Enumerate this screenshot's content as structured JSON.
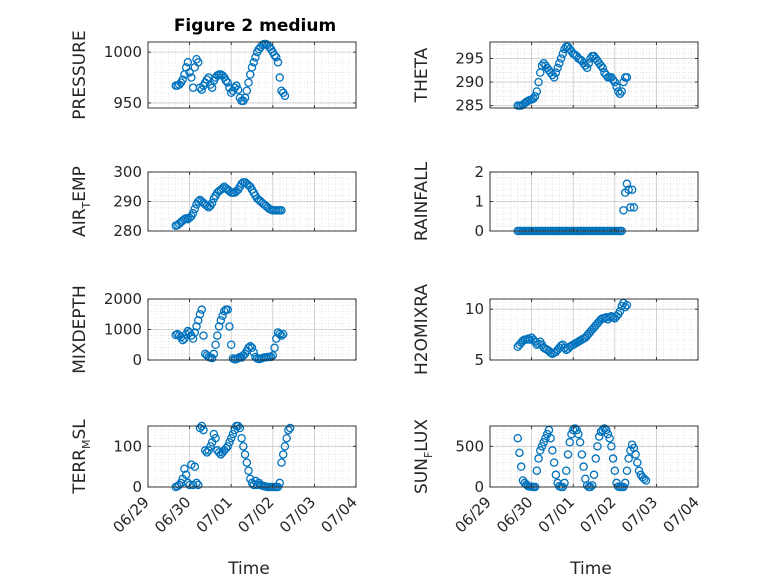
{
  "chart_data": [
    {
      "type": "scatter",
      "title": "Figure 2 medium",
      "ylabel": "PRESSURE",
      "xlabel": "",
      "xlim": [
        "06/29",
        "07/04"
      ],
      "ylim": [
        945,
        1010
      ],
      "yticks": [
        950,
        1000
      ],
      "xticks": [
        "06/29",
        "06/30",
        "07/01",
        "07/02",
        "07/03",
        "07/04"
      ],
      "grid": "on",
      "color": "#0072BD",
      "x_start": "06/29 16:00",
      "x_step_hours": 1,
      "values": [
        967,
        967,
        968,
        970,
        973,
        978,
        985,
        990,
        980,
        975,
        965,
        985,
        993,
        990,
        965,
        963,
        967,
        970,
        973,
        975,
        968,
        965,
        972,
        975,
        977,
        978,
        978,
        977,
        975,
        972,
        970,
        965,
        960,
        962,
        965,
        967,
        963,
        955,
        952,
        952,
        955,
        962,
        970,
        978,
        985,
        990,
        995,
        1000,
        1003,
        1005,
        1007,
        1008,
        1008,
        1007,
        1005,
        1003,
        1000,
        997,
        995,
        990,
        975,
        962,
        960,
        957
      ]
    },
    {
      "type": "scatter",
      "title": "",
      "ylabel": "THETA",
      "xlabel": "",
      "xlim": [
        "06/29",
        "07/04"
      ],
      "ylim": [
        284.5,
        298.5
      ],
      "yticks": [
        285,
        290,
        295
      ],
      "xticks": [
        "06/29",
        "06/30",
        "07/01",
        "07/02",
        "07/03",
        "07/04"
      ],
      "grid": "on",
      "color": "#0072BD",
      "x_start": "06/29 16:00",
      "x_step_hours": 1,
      "values": [
        285,
        285,
        285,
        285.2,
        285.5,
        285.8,
        286,
        286.2,
        286.3,
        286.5,
        287,
        288,
        290,
        292,
        293.5,
        294,
        293.5,
        293,
        292.5,
        292,
        291.5,
        291,
        292,
        293,
        294,
        295,
        296,
        297,
        297.5,
        297.5,
        297,
        296.5,
        296,
        295.8,
        295.5,
        295,
        294.8,
        294.5,
        294,
        293.5,
        293,
        294,
        295,
        295.5,
        295.5,
        295,
        294.5,
        294,
        293.5,
        293,
        292,
        291.5,
        291,
        291,
        291,
        290.5,
        290,
        289,
        288,
        287.5,
        288,
        290,
        291,
        291
      ]
    },
    {
      "type": "scatter",
      "title": "",
      "ylabel": "AIR_TEMP",
      "ylabel_main": "AIR",
      "ylabel_sub": "T",
      "ylabel_rest": "EMP",
      "xlabel": "",
      "xlim": [
        "06/29",
        "07/04"
      ],
      "ylim": [
        280,
        300
      ],
      "yticks": [
        280,
        290,
        300
      ],
      "xticks": [
        "06/29",
        "06/30",
        "07/01",
        "07/02",
        "07/03",
        "07/04"
      ],
      "grid": "on",
      "color": "#0072BD",
      "x_start": "06/29 16:00",
      "x_step_hours": 1,
      "values": [
        281.8,
        282,
        282.5,
        283,
        283.5,
        284,
        284.3,
        284,
        284.5,
        285,
        286,
        287.5,
        289,
        290,
        290.5,
        290,
        289.5,
        289,
        288.5,
        288,
        288.5,
        289.5,
        291,
        292,
        293,
        293.5,
        294,
        294.5,
        295,
        294.5,
        294,
        293.5,
        293,
        293,
        293,
        293.5,
        294,
        295,
        296,
        296.5,
        296.5,
        296,
        295.5,
        295,
        294,
        293,
        292,
        291,
        290.5,
        290,
        289.5,
        289,
        288.5,
        288,
        287.5,
        287.2,
        287,
        287,
        287,
        287,
        287,
        287
      ]
    },
    {
      "type": "scatter",
      "title": "",
      "ylabel": "RAINFALL",
      "xlabel": "",
      "xlim": [
        "06/29",
        "07/04"
      ],
      "ylim": [
        0,
        2
      ],
      "yticks": [
        0,
        1,
        2
      ],
      "xticks": [
        "06/29",
        "06/30",
        "07/01",
        "07/02",
        "07/03",
        "07/04"
      ],
      "grid": "on",
      "color": "#0072BD",
      "x_start": "06/29 16:00",
      "x_step_hours": 1,
      "values": [
        0,
        0,
        0,
        0,
        0,
        0,
        0,
        0,
        0,
        0,
        0,
        0,
        0,
        0,
        0,
        0,
        0,
        0,
        0,
        0,
        0,
        0,
        0,
        0,
        0,
        0,
        0,
        0,
        0,
        0,
        0,
        0,
        0,
        0,
        0,
        0,
        0,
        0,
        0,
        0,
        0,
        0,
        0,
        0,
        0,
        0,
        0,
        0,
        0,
        0,
        0,
        0,
        0,
        0,
        0,
        0,
        0,
        0,
        0,
        0,
        0,
        0.7,
        1.3,
        1.6,
        1.4,
        0.8,
        1.4,
        0.8
      ]
    },
    {
      "type": "scatter",
      "title": "",
      "ylabel": "MIXDEPTH",
      "xlabel": "",
      "xlim": [
        "06/29",
        "07/04"
      ],
      "ylim": [
        0,
        2000
      ],
      "yticks": [
        0,
        1000,
        2000
      ],
      "xticks": [
        "06/29",
        "06/30",
        "07/01",
        "07/02",
        "07/03",
        "07/04"
      ],
      "grid": "on",
      "color": "#0072BD",
      "x_start": "06/29 16:00",
      "x_step_hours": 1,
      "values": [
        820,
        850,
        800,
        750,
        650,
        700,
        850,
        950,
        900,
        800,
        700,
        900,
        1100,
        1300,
        1500,
        1650,
        800,
        200,
        150,
        100,
        80,
        60,
        200,
        500,
        800,
        1100,
        1300,
        1450,
        1600,
        1650,
        1650,
        1100,
        500,
        50,
        20,
        30,
        60,
        100,
        80,
        150,
        200,
        300,
        400,
        450,
        400,
        250,
        100,
        50,
        30,
        40,
        60,
        80,
        90,
        100,
        100,
        100,
        150,
        400,
        700,
        900,
        850,
        800,
        850
      ]
    },
    {
      "type": "scatter",
      "title": "",
      "ylabel": "H2OMIXRA",
      "xlabel": "",
      "xlim": [
        "06/29",
        "07/04"
      ],
      "ylim": [
        5,
        11
      ],
      "yticks": [
        5,
        10
      ],
      "xticks": [
        "06/29",
        "06/30",
        "07/01",
        "07/02",
        "07/03",
        "07/04"
      ],
      "grid": "on",
      "color": "#0072BD",
      "x_start": "06/29 16:00",
      "x_step_hours": 1,
      "values": [
        6.3,
        6.5,
        6.7,
        6.9,
        7,
        7,
        7.1,
        7,
        7.2,
        7,
        6.8,
        6.5,
        6.6,
        6.8,
        6.5,
        6.2,
        6.1,
        6,
        5.9,
        5.7,
        5.6,
        5.7,
        5.8,
        6,
        6.2,
        6.4,
        6.5,
        6.2,
        6.0,
        6.1,
        6.3,
        6.4,
        6.5,
        6.6,
        6.7,
        6.8,
        6.9,
        7,
        7.1,
        7.2,
        7.4,
        7.6,
        7.8,
        8,
        8.2,
        8.4,
        8.6,
        8.8,
        9,
        9.1,
        9.1,
        9.2,
        9.0,
        9.2,
        9.3,
        9.2,
        9.1,
        9.3,
        9.5,
        9.8,
        10.3,
        10.6,
        10.2,
        10.4
      ]
    },
    {
      "type": "scatter",
      "title": "",
      "ylabel": "TERR_MSL",
      "ylabel_main": "TERR",
      "ylabel_sub": "M",
      "ylabel_rest": "SL",
      "xlabel": "Time",
      "xlim": [
        "06/29",
        "07/04"
      ],
      "ylim": [
        0,
        150
      ],
      "yticks": [
        0,
        100
      ],
      "xticks": [
        "06/29",
        "06/30",
        "07/01",
        "07/02",
        "07/03",
        "07/04"
      ],
      "xtick_rotation": 45,
      "grid": "on",
      "color": "#0072BD",
      "x_start": "06/29 16:00",
      "x_step_hours": 1,
      "values": [
        0,
        2,
        5,
        10,
        20,
        45,
        30,
        10,
        5,
        55,
        5,
        50,
        10,
        5,
        145,
        150,
        140,
        90,
        85,
        90,
        100,
        110,
        130,
        120,
        90,
        85,
        80,
        85,
        90,
        95,
        100,
        110,
        120,
        130,
        140,
        150,
        150,
        145,
        120,
        100,
        80,
        60,
        40,
        20,
        10,
        5,
        15,
        5,
        10,
        5,
        3,
        2,
        1,
        0,
        0,
        0,
        0,
        0,
        0,
        0,
        10,
        60,
        80,
        100,
        120,
        140,
        145
      ]
    },
    {
      "type": "scatter",
      "title": "",
      "ylabel": "SUN_FLUX",
      "ylabel_main": "SUN",
      "ylabel_sub": "F",
      "ylabel_rest": "LUX",
      "xlabel": "Time",
      "xlim": [
        "06/29",
        "07/04"
      ],
      "ylim": [
        0,
        750
      ],
      "yticks": [
        0,
        500
      ],
      "xticks": [
        "06/29",
        "06/30",
        "07/01",
        "07/02",
        "07/03",
        "07/04"
      ],
      "xtick_rotation": 45,
      "grid": "on",
      "color": "#0072BD",
      "x_start": "06/29 16:00",
      "x_step_hours": 1,
      "values": [
        600,
        420,
        250,
        80,
        50,
        30,
        10,
        5,
        5,
        0,
        0,
        200,
        350,
        450,
        500,
        550,
        600,
        650,
        700,
        600,
        450,
        300,
        150,
        50,
        10,
        0,
        0,
        50,
        200,
        400,
        550,
        650,
        700,
        720,
        700,
        650,
        550,
        400,
        250,
        100,
        20,
        0,
        0,
        20,
        150,
        350,
        500,
        620,
        680,
        700,
        720,
        700,
        650,
        600,
        500,
        350,
        200,
        50,
        5,
        0,
        0,
        0,
        50,
        200,
        350,
        450,
        520,
        480,
        400,
        300,
        200,
        150,
        120,
        100,
        80
      ]
    }
  ]
}
